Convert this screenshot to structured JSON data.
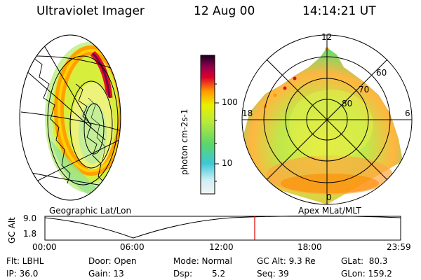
{
  "header": {
    "instrument": "Ultraviolet Imager",
    "date": "12 Aug 00",
    "time": "14:14:21 UT"
  },
  "colorbar": {
    "unit_label": "photon cm-2s-1",
    "ticks": [
      "100",
      "10"
    ]
  },
  "left_panel": {
    "caption": "Geographic Lat/Lon"
  },
  "right_panel": {
    "caption": "Apex MLat/MLT",
    "mlt_labels": [
      "12",
      "18",
      "6",
      "0"
    ],
    "mlat_labels": [
      "60",
      "70",
      "80"
    ]
  },
  "altitude_plot": {
    "ylabel": "GC Alt",
    "yticks": [
      "9.0",
      "1.8"
    ],
    "xticks": [
      "00:00",
      "06:00",
      "12:00",
      "18:00",
      "23:59"
    ],
    "marker_time": "14:14"
  },
  "footer": {
    "flt": "Flt: LBHL",
    "ip": "IP: 36.0",
    "door": "Door: Open",
    "gain": "Gain: 13",
    "mode": "Mode: Normal",
    "dsp_label": "Dsp:",
    "dsp_value": "5.2",
    "gc_alt": "GC Alt: 9.3 Re",
    "seq": "Seq: 39",
    "glat": "GLat:  80.3",
    "glon": "GLon: 159.2"
  },
  "colors": {
    "marker": "#e00000",
    "bar_top": "#1a0020",
    "bar_red": "#e0002a",
    "bar_orange": "#ff9a00",
    "bar_yellow": "#e9f000",
    "bar_green": "#5cd66a",
    "bar_cyan": "#3cc8d8",
    "bar_bottom": "#f4f4f4"
  }
}
